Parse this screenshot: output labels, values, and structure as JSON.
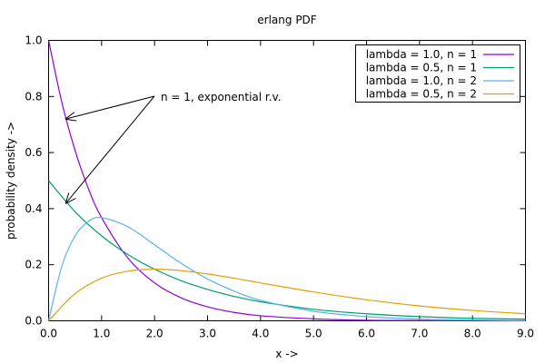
{
  "chart_data": {
    "type": "line",
    "title": "erlang PDF",
    "xlabel": "x ->",
    "ylabel": "probability density ->",
    "xlim": [
      0,
      9
    ],
    "ylim": [
      0,
      1
    ],
    "xticks": [
      0,
      1,
      2,
      3,
      4,
      5,
      6,
      7,
      8,
      9
    ],
    "xtick_labels": [
      "0.0",
      "1.0",
      "2.0",
      "3.0",
      "4.0",
      "5.0",
      "6.0",
      "7.0",
      "8.0",
      "9.0"
    ],
    "yticks": [
      0,
      0.2,
      0.4,
      0.6,
      0.8,
      1.0
    ],
    "ytick_labels": [
      "0.0",
      "0.2",
      "0.4",
      "0.6",
      "0.8",
      "1.0"
    ],
    "grid": false,
    "legend_position": "top-right",
    "series": [
      {
        "name": "lambda = 1.0, n = 1",
        "color": "#9400d3",
        "x": [
          0,
          0.25,
          0.5,
          0.75,
          1,
          1.5,
          2,
          2.5,
          3,
          3.5,
          4,
          5,
          6,
          7,
          8,
          9
        ],
        "values": [
          1.0,
          0.779,
          0.607,
          0.472,
          0.368,
          0.223,
          0.135,
          0.082,
          0.05,
          0.03,
          0.018,
          0.007,
          0.002,
          0.001,
          0.0,
          0.0
        ]
      },
      {
        "name": "lambda = 0.5, n = 1",
        "color": "#009e73",
        "x": [
          0,
          0.5,
          1,
          1.5,
          2,
          2.5,
          3,
          3.5,
          4,
          5,
          6,
          7,
          8,
          9
        ],
        "values": [
          0.5,
          0.389,
          0.303,
          0.236,
          0.184,
          0.143,
          0.112,
          0.087,
          0.068,
          0.041,
          0.025,
          0.015,
          0.009,
          0.006
        ]
      },
      {
        "name": "lambda = 1.0, n = 2",
        "color": "#56b4e9",
        "x": [
          0,
          0.25,
          0.5,
          0.75,
          1,
          1.5,
          2,
          2.5,
          3,
          3.5,
          4,
          5,
          6,
          7,
          8,
          9
        ],
        "values": [
          0.0,
          0.195,
          0.303,
          0.354,
          0.368,
          0.335,
          0.271,
          0.205,
          0.149,
          0.106,
          0.073,
          0.034,
          0.015,
          0.006,
          0.003,
          0.001
        ]
      },
      {
        "name": "lambda = 0.5, n = 2",
        "color": "#e69f00",
        "x": [
          0,
          0.5,
          1,
          1.5,
          2,
          2.5,
          3,
          3.5,
          4,
          5,
          6,
          7,
          8,
          9
        ],
        "values": [
          0.0,
          0.097,
          0.152,
          0.177,
          0.184,
          0.179,
          0.167,
          0.152,
          0.135,
          0.103,
          0.075,
          0.053,
          0.037,
          0.025
        ]
      }
    ],
    "annotation": {
      "text": "n = 1, exponential r.v.",
      "points_to": [
        {
          "series": "lambda = 1.0, n = 1",
          "x": 0.33,
          "y": 0.72
        },
        {
          "series": "lambda = 0.5, n = 1",
          "x": 0.33,
          "y": 0.42
        }
      ]
    }
  }
}
